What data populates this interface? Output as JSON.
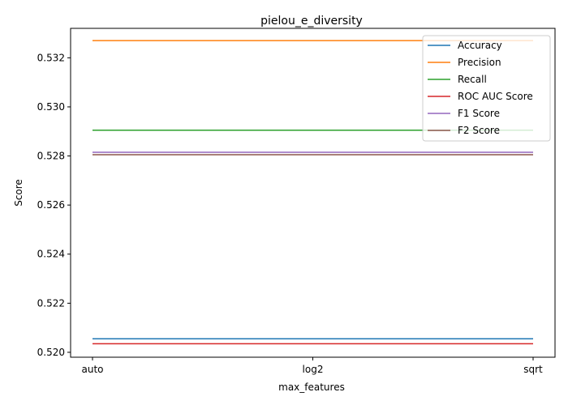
{
  "chart_data": {
    "type": "line",
    "title": "pielou_e_diversity",
    "xlabel": "max_features",
    "ylabel": "Score",
    "categories": [
      "auto",
      "log2",
      "sqrt"
    ],
    "ylim": [
      0.5198,
      0.5332
    ],
    "yticks": [
      0.52,
      0.522,
      0.524,
      0.526,
      0.528,
      0.53,
      0.532
    ],
    "ytick_labels": [
      "0.520",
      "0.522",
      "0.524",
      "0.526",
      "0.528",
      "0.530",
      "0.532"
    ],
    "grid": false,
    "legend_position": "top-right",
    "series": [
      {
        "name": "Accuracy",
        "color": "#1f77b4",
        "values": [
          0.52055,
          0.52055,
          0.52055
        ]
      },
      {
        "name": "Precision",
        "color": "#ff7f0e",
        "values": [
          0.5327,
          0.5327,
          0.5327
        ]
      },
      {
        "name": "Recall",
        "color": "#2ca02c",
        "values": [
          0.52905,
          0.52905,
          0.52905
        ]
      },
      {
        "name": "ROC AUC Score",
        "color": "#d62728",
        "values": [
          0.52035,
          0.52035,
          0.52035
        ]
      },
      {
        "name": "F1 Score",
        "color": "#9467bd",
        "values": [
          0.52815,
          0.52815,
          0.52815
        ]
      },
      {
        "name": "F2 Score",
        "color": "#8c564b",
        "values": [
          0.52805,
          0.52805,
          0.52805
        ]
      }
    ]
  }
}
